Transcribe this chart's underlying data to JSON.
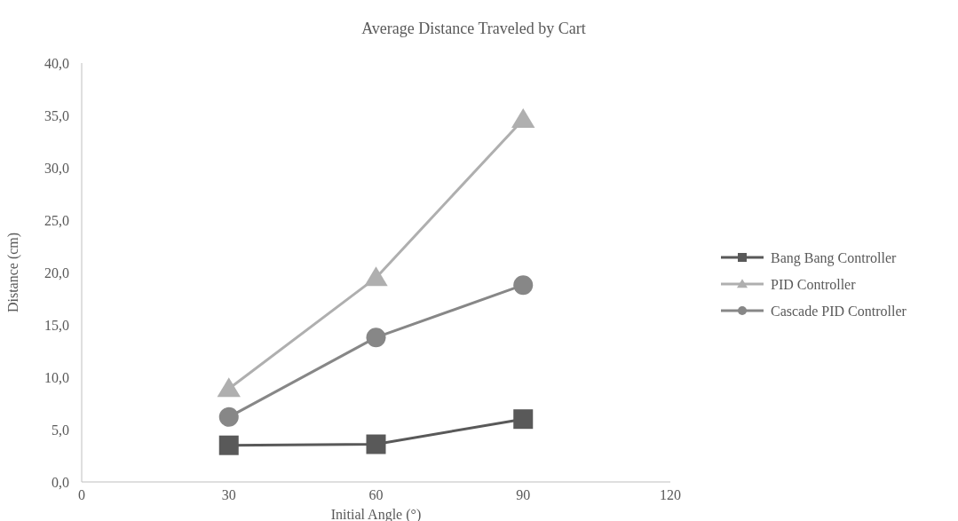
{
  "chart_data": {
    "type": "line",
    "title": "Average Distance Traveled by Cart",
    "xlabel": "Initial Angle (°)",
    "ylabel": "Distance (cm)",
    "x": [
      30,
      60,
      90
    ],
    "series": [
      {
        "name": "Bang Bang Controller",
        "color": "#595959",
        "values": [
          3.5,
          3.6,
          6.0
        ],
        "marker": "square"
      },
      {
        "name": "PID Controller",
        "color": "#afafaf",
        "values": [
          8.9,
          19.5,
          34.6
        ],
        "marker": "triangle"
      },
      {
        "name": "Cascade PID Controller",
        "color": "#878787",
        "values": [
          6.2,
          13.8,
          18.8
        ],
        "marker": "circle"
      }
    ],
    "xlim": [
      0,
      120
    ],
    "xticks": [
      0,
      30,
      60,
      90,
      120
    ],
    "ylim": [
      0,
      40
    ],
    "yticks": [
      {
        "value": 0,
        "label": "0,0"
      },
      {
        "value": 5,
        "label": "5,0"
      },
      {
        "value": 10,
        "label": "10,0"
      },
      {
        "value": 15,
        "label": "15,0"
      },
      {
        "value": 20,
        "label": "20,0"
      },
      {
        "value": 25,
        "label": "25,0"
      },
      {
        "value": 30,
        "label": "30,0"
      },
      {
        "value": 35,
        "label": "35,0"
      },
      {
        "value": 40,
        "label": "40,0"
      }
    ],
    "grid": false,
    "legend": "right",
    "line_style": "solid"
  }
}
